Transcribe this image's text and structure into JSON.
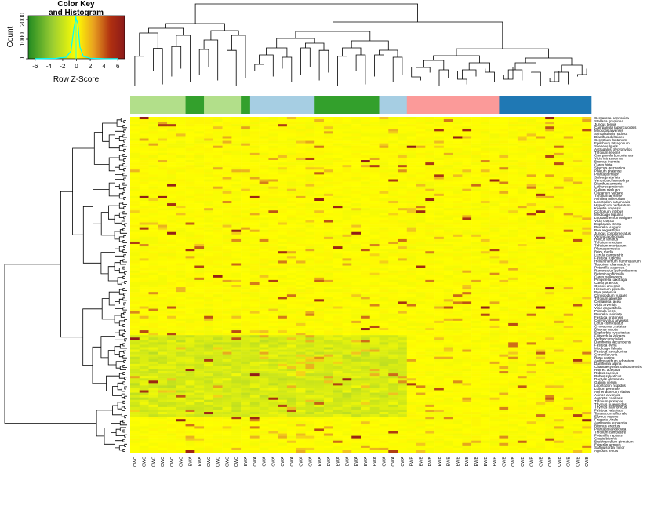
{
  "chart_data": {
    "type": "heatmap",
    "title": "",
    "color_key": {
      "title_line1": "Color Key",
      "title_line2": "and Histogram",
      "xlabel": "Row Z-Score",
      "ylabel": "Count",
      "x_ticks": [
        "-6",
        "-4",
        "-2",
        "0",
        "2",
        "4",
        "6"
      ],
      "x_tick_values": [
        -6,
        -4,
        -2,
        0,
        2,
        4,
        6
      ],
      "x_range": [
        -7,
        7
      ],
      "y_ticks": [
        "0",
        "1000",
        "2000"
      ],
      "y_tick_values": [
        0,
        1000,
        2000
      ],
      "y_range": [
        0,
        2200
      ],
      "gradient": [
        "#228B22",
        "#9ACD32",
        "#FFFF00",
        "#E8A020",
        "#B03010",
        "#8B1A1A"
      ]
    },
    "group_colors": {
      "CWC": "#B2DF8A",
      "EWA": "#33A02C",
      "CWA": "#A6CEE3",
      "EWB": "#FB9A99",
      "CWB": "#1F78B4"
    },
    "column_groups": [
      {
        "label": "CWC",
        "count": 6
      },
      {
        "label": "EWA",
        "count": 2
      },
      {
        "label": "CWC",
        "count": 4
      },
      {
        "label": "EWA",
        "count": 1
      },
      {
        "label": "CWA",
        "count": 7
      },
      {
        "label": "EWA",
        "count": 7
      },
      {
        "label": "CWA",
        "count": 3
      },
      {
        "label": "EWB",
        "count": 10
      },
      {
        "label": "CWB",
        "count": 10
      }
    ],
    "columns": [
      "CWC",
      "CWC",
      "CWC",
      "CWC",
      "CWC",
      "CWC",
      "EWA",
      "EWA",
      "CWC",
      "CWC",
      "CWC",
      "CWC",
      "EWA",
      "CWA",
      "CWA",
      "CWA",
      "CWA",
      "CWA",
      "CWA",
      "CWA",
      "EWA",
      "EWA",
      "EWA",
      "EWA",
      "EWA",
      "EWA",
      "EWA",
      "CWA",
      "CWA",
      "CWA",
      "EWB",
      "EWB",
      "EWB",
      "EWB",
      "EWB",
      "EWB",
      "EWB",
      "EWB",
      "EWB",
      "EWB",
      "CWB",
      "CWB",
      "CWB",
      "CWB",
      "CWB",
      "CWB",
      "CWB",
      "CWB",
      "CWB",
      "CWB"
    ],
    "rows": [
      "Centaurea pannonica",
      "Stellaria graminea",
      "Juncus tenuis",
      "Campanula rapunculoides",
      "Myosotis arvensis",
      "Scrophularia nodosa",
      "Dianthus deltoides",
      "Cerastium fontanum",
      "Epilobium tetragonum",
      "Silene vulgaris",
      "Astragalus glycyphyllos",
      "Trifolium repens",
      "Campanula bononiensis",
      "Vicia tetrasperma",
      "Bromus inermis",
      "Carex hirta",
      "Stachys germanica",
      "Phleum pratense",
      "Plantago major",
      "Salvia pratensis",
      "Veronica chamaedrys",
      "Dianthus armeria",
      "Lathyrus pratensis",
      "Galium mollugo",
      "Origanum vulgare",
      "Trifolium arvense",
      "Achillea millefolium",
      "Leontodon autumnalis",
      "Hypericum perforatum",
      "Knautia arvensis",
      "Cichorium intybus",
      "Medicago lupulina",
      "Leucanthemum vulgare",
      "Vicia cracca",
      "Euphrasia stricta",
      "Prunella vulgaris",
      "Poa angustifolia",
      "Juncus conglomeratus",
      "Veronica officinalis",
      "Holcus lanatus",
      "Trifolium medium",
      "Trifolium montanum",
      "Plantago media",
      "Briza media",
      "Luzula campestris",
      "Festuca rupicola",
      "Helianthemum nummularium",
      "Teucrium chamaedrys",
      "Potentilla argentea",
      "Ranunculus polyanthemos",
      "Betonica officinalis",
      "Carex pallescens",
      "Pimpinella saxifraga",
      "Carex praecox",
      "Ononis arvensis",
      "Hieracium pilosella",
      "Poa pratensis",
      "Clinopodium vulgare",
      "Trifolium alpestre",
      "Centaurea jacea",
      "Viola arvensis",
      "Vicia angustifolia",
      "Primula veris",
      "Prunella laciniata",
      "Festuca pratensis",
      "Convolvulus arvensis",
      "Lotus corniculatus",
      "Cynosurus cristatus",
      "Daucus carota",
      "Euphorbia cyparissias",
      "Filipendula vulgaris",
      "Verbascum chaixii",
      "Danthonia decumbens",
      "Festuca ovina",
      "Medicago falcata",
      "Festuca pseudovina",
      "Coronilla varia",
      "Rosa canina",
      "Anthoxanthum odoratum",
      "Danthonia alpina",
      "Chamaecytisus ratisbonensis",
      "Rumex acetosa",
      "Rubus caesius",
      "Rubus sylvaticus",
      "Dactylis glomerata",
      "Galium verum",
      "Leontodon hispidus",
      "Lolium perenne",
      "Arrhenatherum elatius",
      "Acinos arvensis",
      "Agrostis capillaris",
      "Trifolium pratense",
      "Thymus pulegioides",
      "Thymus pannonicus",
      "Festuca valesiaca",
      "Taraxacum officinale",
      "Elymus repens",
      "Fragaria viridis",
      "Agrimonia eupatoria",
      "Bromus erectus",
      "Plantago lanceolata",
      "Trifolium campestre",
      "Potentilla reptans",
      "Crepis biennis",
      "Brachypodium pinnatum",
      "Erigeron annuus",
      "Sanguisorba minor",
      "Agrostis tenuis"
    ],
    "values_note": "Row Z-Score matrix: mostly near 0 (yellow) with a few high outliers (dark red/orange) and mildly negative regions (green tint) in the EWA and lower CWC columns."
  }
}
